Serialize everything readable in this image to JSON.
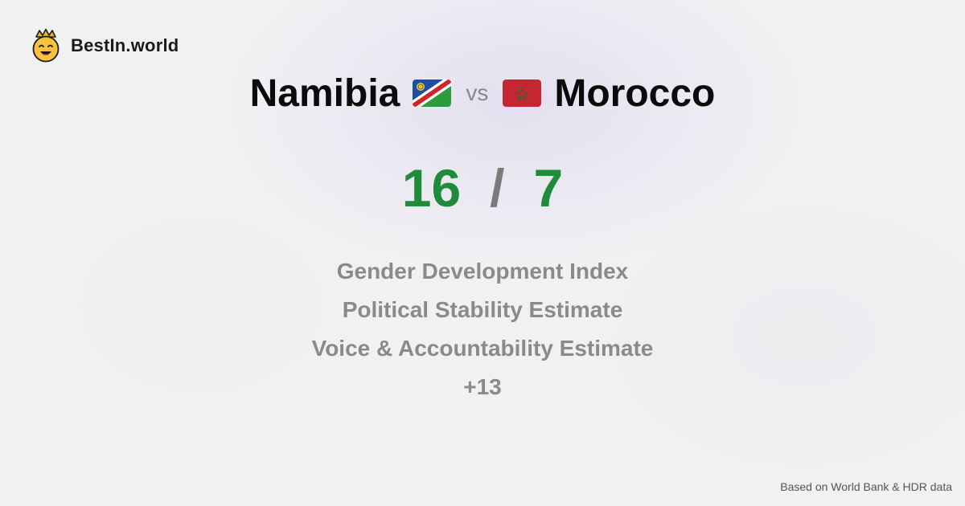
{
  "brand": {
    "name": "BestIn.world",
    "logo_icon": "crowned-smiley-icon"
  },
  "comparison": {
    "left_country": "Namibia",
    "left_flag_icon": "namibia-flag-icon",
    "vs_label": "vs",
    "right_country": "Morocco",
    "right_flag_icon": "morocco-flag-icon",
    "left_score": "16",
    "separator": "/",
    "right_score": "7"
  },
  "metrics": [
    "Gender Development Index",
    "Political Stability Estimate",
    "Voice & Accountability Estimate",
    "+13"
  ],
  "footer": {
    "source": "Based on World Bank & HDR data"
  },
  "colors": {
    "score_green": "#1f8c3b",
    "muted_gray": "#8a8a8a",
    "title_black": "#0b0b0b"
  }
}
